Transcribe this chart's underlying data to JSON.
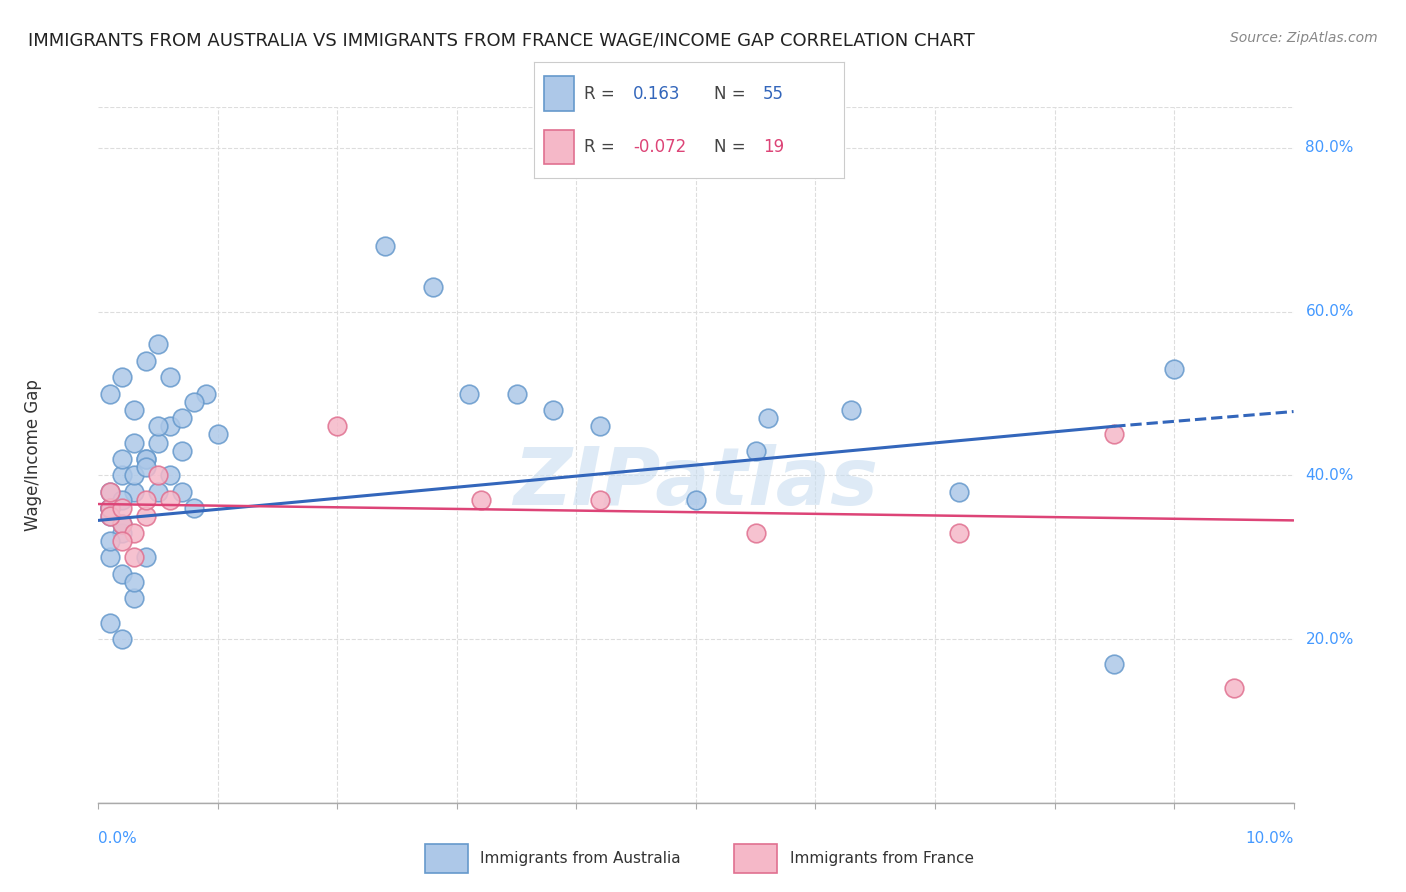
{
  "title": "IMMIGRANTS FROM AUSTRALIA VS IMMIGRANTS FROM FRANCE WAGE/INCOME GAP CORRELATION CHART",
  "source": "Source: ZipAtlas.com",
  "ylabel": "Wage/Income Gap",
  "australia_color": "#adc8e8",
  "france_color": "#f5b8c8",
  "australia_edge": "#6699cc",
  "france_edge": "#e07090",
  "trend_australia_color": "#3366bb",
  "trend_france_color": "#dd4477",
  "legend_R_australia": "0.163",
  "legend_N_australia": "55",
  "legend_R_france": "-0.072",
  "legend_N_france": "19",
  "australia_x": [
    0.001,
    0.002,
    0.003,
    0.004,
    0.005,
    0.006,
    0.007,
    0.008,
    0.009,
    0.01,
    0.001,
    0.002,
    0.003,
    0.004,
    0.005,
    0.006,
    0.007,
    0.008,
    0.001,
    0.002,
    0.003,
    0.004,
    0.005,
    0.006,
    0.007,
    0.001,
    0.002,
    0.003,
    0.004,
    0.005,
    0.001,
    0.002,
    0.003,
    0.004,
    0.001,
    0.002,
    0.003,
    0.001,
    0.002,
    0.001,
    0.002,
    0.001,
    0.024,
    0.028,
    0.031,
    0.035,
    0.038,
    0.042,
    0.05,
    0.055,
    0.072,
    0.085,
    0.09,
    0.056,
    0.063
  ],
  "australia_y": [
    0.36,
    0.4,
    0.38,
    0.42,
    0.44,
    0.46,
    0.38,
    0.36,
    0.5,
    0.45,
    0.5,
    0.52,
    0.48,
    0.54,
    0.56,
    0.52,
    0.47,
    0.49,
    0.35,
    0.33,
    0.25,
    0.3,
    0.38,
    0.4,
    0.43,
    0.36,
    0.42,
    0.44,
    0.42,
    0.46,
    0.38,
    0.37,
    0.4,
    0.41,
    0.3,
    0.28,
    0.27,
    0.22,
    0.2,
    0.32,
    0.34,
    0.36,
    0.68,
    0.63,
    0.5,
    0.5,
    0.48,
    0.46,
    0.37,
    0.43,
    0.38,
    0.17,
    0.53,
    0.47,
    0.48
  ],
  "france_x": [
    0.001,
    0.002,
    0.003,
    0.004,
    0.005,
    0.006,
    0.001,
    0.002,
    0.003,
    0.004,
    0.001,
    0.002,
    0.02,
    0.032,
    0.042,
    0.055,
    0.072,
    0.085,
    0.095
  ],
  "france_y": [
    0.36,
    0.34,
    0.33,
    0.35,
    0.4,
    0.37,
    0.35,
    0.32,
    0.3,
    0.37,
    0.38,
    0.36,
    0.46,
    0.37,
    0.37,
    0.33,
    0.33,
    0.45,
    0.14
  ],
  "watermark": "ZIPatlas",
  "background_color": "#ffffff",
  "grid_color": "#dddddd",
  "xmin": 0.0,
  "xmax": 0.1,
  "ymin": 0.0,
  "ymax": 0.85,
  "ytick_vals": [
    0.2,
    0.4,
    0.6,
    0.8
  ],
  "ytick_labels": [
    "20.0%",
    "40.0%",
    "60.0%",
    "80.0%"
  ]
}
